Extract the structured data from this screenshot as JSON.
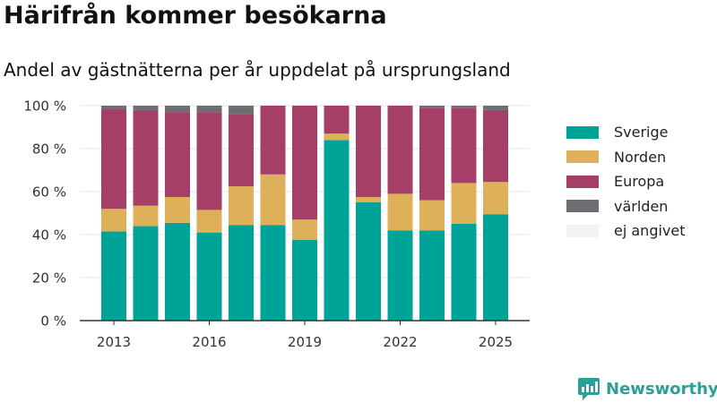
{
  "title": "Härifrån kommer besökarna",
  "subtitle": "Andel av gästnätterna per år uppdelat på ursprungsland",
  "brand": {
    "name": "Newsworthy",
    "icon": "newsworthy-logo-icon"
  },
  "chart_data": {
    "type": "bar",
    "stacked": true,
    "categories": [
      "2013",
      "2014",
      "2015",
      "2016",
      "2017",
      "2018",
      "2019",
      "2020",
      "2021",
      "2022",
      "2023",
      "2024",
      "2025"
    ],
    "x_tick_labels": [
      "2013",
      "2016",
      "2019",
      "2022",
      "2025"
    ],
    "y_tick_labels": [
      "0 %",
      "20 %",
      "40 %",
      "60 %",
      "80 %",
      "100 %"
    ],
    "ylim": [
      0,
      100
    ],
    "grid": true,
    "legend_position": "right",
    "series": [
      {
        "name": "Sverige",
        "color": "#00a398",
        "values": [
          41.5,
          44,
          45.5,
          41,
          44.5,
          44.5,
          37.5,
          84,
          55,
          42,
          42,
          45,
          49.5
        ]
      },
      {
        "name": "Norden",
        "color": "#dfb05a",
        "values": [
          10.5,
          9.5,
          12,
          10.5,
          18,
          23.5,
          9.5,
          3,
          2.5,
          17,
          14,
          19,
          15
        ]
      },
      {
        "name": "Europa",
        "color": "#a53f67",
        "values": [
          46.5,
          44.5,
          39.5,
          45.5,
          33.5,
          32,
          53,
          13,
          42.5,
          41,
          43,
          35,
          33.5
        ]
      },
      {
        "name": "världen",
        "color": "#6d6d72",
        "values": [
          1.5,
          2,
          3,
          3,
          4,
          0,
          0,
          0,
          0,
          0,
          1,
          1,
          2
        ]
      },
      {
        "name": "ej angivet",
        "color": "#f2f2f2",
        "values": [
          0,
          0,
          0,
          0,
          0,
          0,
          0,
          0,
          0,
          0,
          0,
          0,
          0
        ]
      }
    ]
  }
}
